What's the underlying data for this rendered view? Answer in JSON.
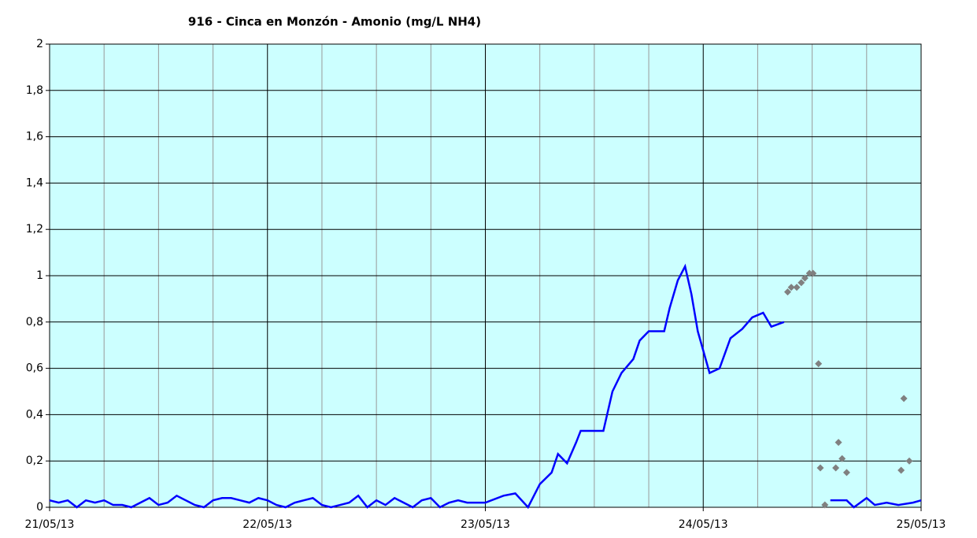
{
  "chart_data": {
    "type": "line",
    "title": "916 - Cinca en Monzón - Amonio (mg/L NH4)",
    "xlim": [
      0,
      96
    ],
    "xticks": [
      {
        "value": 0,
        "label": "21/05/13"
      },
      {
        "value": 24,
        "label": "22/05/13"
      },
      {
        "value": 48,
        "label": "23/05/13"
      },
      {
        "value": 72,
        "label": "24/05/13"
      },
      {
        "value": 96,
        "label": "25/05/13"
      }
    ],
    "xminor": [
      6,
      12,
      18,
      30,
      36,
      42,
      54,
      60,
      66,
      78,
      84,
      90
    ],
    "ylim": [
      0,
      2
    ],
    "yticks": [
      0,
      {
        "value": 0.2,
        "label": "0,2"
      },
      {
        "value": 0.4,
        "label": "0,4"
      },
      {
        "value": 0.6,
        "label": "0,6"
      },
      {
        "value": 0.8,
        "label": "0,8"
      },
      1,
      {
        "value": 1.2,
        "label": "1,2"
      },
      {
        "value": 1.4,
        "label": "1,4"
      },
      {
        "value": 1.6,
        "label": "1,6"
      },
      {
        "value": 1.8,
        "label": "1,8"
      },
      2
    ],
    "grid": true,
    "background": "#ccffff",
    "series": [
      {
        "type": "line",
        "color": "#0000ff",
        "x": [
          0,
          1,
          2,
          3,
          4,
          5,
          6,
          7,
          8,
          9,
          10,
          11,
          12,
          13,
          14,
          15,
          16,
          17,
          18,
          19,
          20,
          21,
          22,
          23,
          24,
          25,
          26,
          27,
          28,
          29,
          30,
          31,
          32,
          33,
          34,
          35,
          36,
          37,
          38,
          39,
          40,
          41,
          42,
          43,
          44,
          45,
          46,
          47,
          48,
          50,
          51.3,
          52.7,
          54,
          55.3,
          56,
          57,
          58,
          58.5,
          61,
          62,
          63,
          64.3,
          65,
          66,
          67.7,
          68.3,
          69.2,
          70,
          70.7,
          71.4,
          72.7,
          73.8,
          75,
          76.3,
          77.4,
          78.6,
          79.5,
          80.9,
          83,
          86,
          87.8,
          88.6,
          90,
          90.9,
          92.2,
          93.5,
          95.1,
          96
        ],
        "values": [
          0.03,
          0.02,
          0.03,
          0,
          0.03,
          0.02,
          0.03,
          0.01,
          0.01,
          0,
          0.02,
          0.04,
          0.01,
          0.02,
          0.05,
          0.03,
          0.01,
          0,
          0.03,
          0.04,
          0.04,
          0.03,
          0.02,
          0.04,
          0.03,
          0.01,
          0,
          0.02,
          0.03,
          0.04,
          0.01,
          0,
          0.01,
          0.02,
          0.05,
          0,
          0.03,
          0.01,
          0.04,
          0.02,
          0,
          0.03,
          0.04,
          0,
          0.02,
          0.03,
          0.02,
          0.02,
          0.02,
          0.05,
          0.06,
          0,
          0.1,
          0.15,
          0.23,
          0.19,
          0.28,
          0.33,
          0.33,
          0.5,
          0.58,
          0.64,
          0.72,
          0.76,
          0.76,
          0.86,
          0.98,
          1.04,
          0.92,
          0.76,
          0.58,
          0.6,
          0.73,
          0.77,
          0.82,
          0.84,
          0.78,
          0.8,
          null,
          0.03,
          0.03,
          0,
          0.04,
          0.01,
          0.02,
          0.01,
          0.02,
          0.03
        ]
      },
      {
        "type": "scatter",
        "color": "#808080",
        "x": [
          81.3,
          81.7,
          82.3,
          82.8,
          83.2,
          83.7,
          84.1,
          84.7,
          84.9,
          85.4,
          86.6,
          86.9,
          87.3,
          87.8,
          93.8,
          94.1,
          94.7
        ],
        "values": [
          0.93,
          0.95,
          0.95,
          0.97,
          0.99,
          1.01,
          1.01,
          0.62,
          0.17,
          0.01,
          0.17,
          0.28,
          0.21,
          0.15,
          0.16,
          0.47,
          0.2
        ]
      }
    ]
  }
}
